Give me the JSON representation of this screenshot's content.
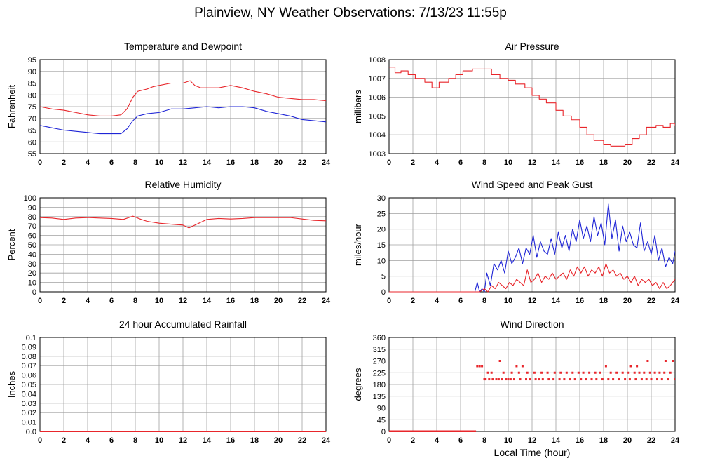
{
  "page_title": "Plainview, NY Weather Observations: 7/13/23 11:55p",
  "colors": {
    "red": "#e8262b",
    "blue": "#1f25d6",
    "grid": "#a0a0a0"
  },
  "chart_data": [
    {
      "id": "temp",
      "type": "line",
      "title": "Temperature and Dewpoint",
      "xlabel": "",
      "ylabel": "Fahrenheit",
      "xlim": [
        0,
        24
      ],
      "ylim": [
        55,
        95
      ],
      "xticks": [
        0,
        2,
        4,
        6,
        8,
        10,
        12,
        14,
        16,
        18,
        20,
        22,
        24
      ],
      "yticks": [
        55,
        60,
        65,
        70,
        75,
        80,
        85,
        90,
        95
      ],
      "grid": true,
      "legend": "none",
      "series": [
        {
          "color": "#e8262b",
          "x": [
            0,
            1,
            2,
            3,
            4,
            5,
            6,
            6.8,
            7.3,
            7.8,
            8.2,
            9,
            9.5,
            10,
            11,
            12,
            12.6,
            13,
            13.5,
            14,
            15,
            16,
            17,
            18,
            19,
            20,
            21,
            22,
            23,
            24
          ],
          "y": [
            75,
            74,
            73.5,
            72.5,
            71.5,
            71,
            71,
            71.5,
            74,
            79,
            81.5,
            82.5,
            83.5,
            84,
            85,
            85,
            86,
            84,
            83,
            83,
            83,
            84,
            83,
            81.5,
            80.5,
            79,
            78.5,
            78,
            78,
            77.5
          ]
        },
        {
          "color": "#1f25d6",
          "x": [
            0,
            1,
            2,
            3,
            4,
            5,
            6,
            6.8,
            7.3,
            7.8,
            8.2,
            9,
            10,
            11,
            12,
            13,
            14,
            15,
            16,
            17,
            18,
            19,
            20,
            21,
            22,
            23,
            24
          ],
          "y": [
            67,
            66,
            65,
            64.5,
            64,
            63.5,
            63.5,
            63.5,
            65.5,
            69,
            71,
            72,
            72.5,
            74,
            74,
            74.5,
            75,
            74.5,
            75,
            75,
            74.5,
            73,
            72,
            71,
            69.5,
            69,
            68.5
          ]
        }
      ]
    },
    {
      "id": "pressure",
      "type": "line",
      "title": "Air Pressure",
      "xlabel": "",
      "ylabel": "millibars",
      "xlim": [
        0,
        24
      ],
      "ylim": [
        1003,
        1008
      ],
      "xticks": [
        0,
        2,
        4,
        6,
        8,
        10,
        12,
        14,
        16,
        18,
        20,
        22,
        24
      ],
      "yticks": [
        1003,
        1004,
        1005,
        1006,
        1007,
        1008
      ],
      "grid": true,
      "legend": "none",
      "step": true,
      "series": [
        {
          "color": "#e8262b",
          "x": [
            0,
            0.5,
            1,
            1.6,
            2.2,
            3,
            3.6,
            4.2,
            5,
            5.6,
            6.2,
            7,
            8,
            8.6,
            9.3,
            10,
            10.6,
            11.4,
            12,
            12.6,
            13.2,
            14,
            14.6,
            15.3,
            16,
            16.6,
            17.2,
            18,
            18.6,
            19.2,
            19.8,
            20.4,
            21,
            21.6,
            22.4,
            23,
            23.6,
            24
          ],
          "y": [
            1007.6,
            1007.3,
            1007.4,
            1007.2,
            1007,
            1006.8,
            1006.5,
            1006.8,
            1007,
            1007.2,
            1007.4,
            1007.5,
            1007.5,
            1007.2,
            1007,
            1006.9,
            1006.7,
            1006.5,
            1006.1,
            1005.9,
            1005.7,
            1005.3,
            1005,
            1004.8,
            1004.4,
            1004,
            1003.7,
            1003.5,
            1003.4,
            1003.4,
            1003.5,
            1003.8,
            1004,
            1004.4,
            1004.5,
            1004.4,
            1004.6,
            1004.5
          ]
        }
      ]
    },
    {
      "id": "humidity",
      "type": "line",
      "title": "Relative Humidity",
      "xlabel": "",
      "ylabel": "Percent",
      "xlim": [
        0,
        24
      ],
      "ylim": [
        0,
        100
      ],
      "xticks": [
        0,
        2,
        4,
        6,
        8,
        10,
        12,
        14,
        16,
        18,
        20,
        22,
        24
      ],
      "yticks": [
        0,
        10,
        20,
        30,
        40,
        50,
        60,
        70,
        80,
        90,
        100
      ],
      "grid": true,
      "legend": "none",
      "series": [
        {
          "color": "#e8262b",
          "x": [
            0,
            1,
            2,
            3,
            4,
            5,
            6,
            7,
            7.8,
            8.5,
            9,
            10,
            11,
            12,
            12.5,
            13,
            14,
            15,
            16,
            17,
            18,
            19,
            20,
            21,
            22,
            23,
            24
          ],
          "y": [
            79,
            78.5,
            77,
            78.5,
            79,
            78.5,
            78,
            77,
            80.5,
            77,
            75,
            73,
            72,
            71,
            68,
            71,
            77,
            78,
            77.5,
            78,
            79,
            79,
            79,
            79,
            77.5,
            76,
            75.5
          ]
        }
      ]
    },
    {
      "id": "wind",
      "type": "line",
      "title": "Wind Speed and Peak Gust",
      "xlabel": "",
      "ylabel": "miles/hour",
      "xlim": [
        0,
        24
      ],
      "ylim": [
        0,
        30
      ],
      "xticks": [
        0,
        2,
        4,
        6,
        8,
        10,
        12,
        14,
        16,
        18,
        20,
        22,
        24
      ],
      "yticks": [
        0,
        5,
        10,
        15,
        20,
        25,
        30
      ],
      "grid": true,
      "legend": "none",
      "series": [
        {
          "color": "#1f25d6",
          "x": [
            0,
            7.2,
            7.4,
            7.6,
            7.8,
            8,
            8.2,
            8.5,
            8.8,
            9.1,
            9.4,
            9.7,
            10,
            10.3,
            10.6,
            10.9,
            11.2,
            11.5,
            11.8,
            12.1,
            12.4,
            12.7,
            13,
            13.3,
            13.6,
            13.9,
            14.2,
            14.5,
            14.8,
            15.1,
            15.4,
            15.7,
            16,
            16.3,
            16.6,
            16.9,
            17.2,
            17.5,
            17.8,
            18.1,
            18.4,
            18.7,
            19,
            19.3,
            19.6,
            19.9,
            20.2,
            20.5,
            20.8,
            21.1,
            21.4,
            21.7,
            22,
            22.3,
            22.6,
            22.9,
            23.2,
            23.5,
            23.8,
            24
          ],
          "y": [
            0,
            0,
            3,
            0,
            1,
            0,
            6,
            2,
            9,
            7,
            10,
            6,
            13,
            9,
            11,
            14,
            9,
            14,
            12,
            18,
            11,
            16,
            13,
            12,
            17,
            12,
            19,
            14,
            18,
            13,
            20,
            16,
            23,
            17,
            21,
            16,
            24,
            18,
            22,
            15,
            28,
            17,
            23,
            13,
            21,
            16,
            19,
            15,
            14,
            22,
            13,
            16,
            12,
            18,
            10,
            14,
            8,
            11,
            9,
            13
          ]
        },
        {
          "color": "#e8262b",
          "x": [
            0,
            7.6,
            8,
            8.3,
            8.6,
            8.9,
            9.2,
            9.5,
            9.8,
            10.1,
            10.4,
            10.7,
            11,
            11.3,
            11.6,
            11.9,
            12.2,
            12.5,
            12.8,
            13.1,
            13.4,
            13.7,
            14,
            14.3,
            14.6,
            14.9,
            15.2,
            15.5,
            15.8,
            16.1,
            16.4,
            16.7,
            17,
            17.3,
            17.6,
            17.9,
            18.2,
            18.5,
            18.8,
            19.1,
            19.4,
            19.7,
            20,
            20.3,
            20.6,
            20.9,
            21.2,
            21.5,
            21.8,
            22.1,
            22.4,
            22.7,
            23,
            23.3,
            23.6,
            24
          ],
          "y": [
            0,
            0,
            1,
            0,
            2,
            1,
            3,
            2,
            1,
            3,
            2,
            4,
            3,
            2,
            7,
            3,
            4,
            6,
            3,
            5,
            4,
            6,
            4,
            5,
            6,
            4,
            7,
            5,
            8,
            6,
            8,
            5,
            7,
            6,
            8,
            5,
            9,
            6,
            7,
            5,
            6,
            4,
            5,
            3,
            5,
            2,
            4,
            3,
            4,
            2,
            3,
            1,
            3,
            1,
            2,
            4
          ]
        }
      ]
    },
    {
      "id": "rain",
      "type": "line",
      "title": "24 hour Accumulated Rainfall",
      "xlabel": "",
      "ylabel": "Inches",
      "xlim": [
        0,
        24
      ],
      "ylim": [
        0,
        0.1
      ],
      "xticks": [
        0,
        2,
        4,
        6,
        8,
        10,
        12,
        14,
        16,
        18,
        20,
        22,
        24
      ],
      "yticks": [
        0.0,
        0.01,
        0.02,
        0.03,
        0.04,
        0.05,
        0.06,
        0.07,
        0.08,
        0.09,
        0.1
      ],
      "ytick_labels": [
        "0.0",
        "0.01",
        "0.02",
        "0.03",
        "0.04",
        "0.05",
        "0.06",
        "0.07",
        "0.08",
        "0.09",
        "0.1"
      ],
      "grid": true,
      "legend": "none",
      "series": [
        {
          "color": "#e8262b",
          "x": [
            0,
            24
          ],
          "y": [
            0,
            0
          ]
        }
      ]
    },
    {
      "id": "direction",
      "type": "scatter",
      "title": "Wind Direction",
      "xlabel": "Local Time (hour)",
      "ylabel": "degrees",
      "xlim": [
        0,
        24
      ],
      "ylim": [
        0,
        360
      ],
      "xticks": [
        0,
        2,
        4,
        6,
        8,
        10,
        12,
        14,
        16,
        18,
        20,
        22,
        24
      ],
      "yticks": [
        0,
        45,
        90,
        135,
        180,
        225,
        270,
        315,
        360
      ],
      "grid": true,
      "legend": "none",
      "series": [
        {
          "color": "#e8262b",
          "points": [
            [
              7.4,
              250
            ],
            [
              7.6,
              250
            ],
            [
              7.8,
              250
            ],
            [
              8.0,
              200
            ],
            [
              8.3,
              225
            ],
            [
              8.6,
              225
            ],
            [
              9.3,
              270
            ],
            [
              10.7,
              250
            ],
            [
              11.2,
              250
            ],
            [
              18.2,
              250
            ],
            [
              20.3,
              250
            ],
            [
              20.8,
              250
            ],
            [
              21.7,
              270
            ],
            [
              23.2,
              270
            ],
            [
              23.8,
              270
            ],
            [
              8.1,
              200
            ],
            [
              8.4,
              200
            ],
            [
              8.7,
              200
            ],
            [
              9.0,
              200
            ],
            [
              9.2,
              200
            ],
            [
              9.5,
              200
            ],
            [
              9.8,
              200
            ],
            [
              10.0,
              200
            ],
            [
              10.2,
              200
            ],
            [
              10.5,
              200
            ],
            [
              11.0,
              200
            ],
            [
              11.5,
              200
            ],
            [
              11.8,
              200
            ],
            [
              12.3,
              200
            ],
            [
              12.6,
              200
            ],
            [
              12.9,
              200
            ],
            [
              13.4,
              200
            ],
            [
              13.8,
              200
            ],
            [
              14.3,
              200
            ],
            [
              14.7,
              200
            ],
            [
              15.2,
              200
            ],
            [
              15.6,
              200
            ],
            [
              16.1,
              200
            ],
            [
              16.5,
              200
            ],
            [
              17.0,
              200
            ],
            [
              17.4,
              200
            ],
            [
              17.9,
              200
            ],
            [
              18.4,
              200
            ],
            [
              18.8,
              200
            ],
            [
              19.3,
              200
            ],
            [
              19.8,
              200
            ],
            [
              20.2,
              200
            ],
            [
              20.7,
              200
            ],
            [
              21.2,
              200
            ],
            [
              21.6,
              200
            ],
            [
              22.0,
              200
            ],
            [
              22.5,
              200
            ],
            [
              22.9,
              200
            ],
            [
              23.4,
              200
            ],
            [
              24.0,
              200
            ],
            [
              9.6,
              225
            ],
            [
              10.3,
              225
            ],
            [
              10.9,
              225
            ],
            [
              11.6,
              225
            ],
            [
              12.2,
              225
            ],
            [
              12.8,
              225
            ],
            [
              13.3,
              225
            ],
            [
              13.9,
              225
            ],
            [
              14.4,
              225
            ],
            [
              14.9,
              225
            ],
            [
              15.4,
              225
            ],
            [
              15.9,
              225
            ],
            [
              16.3,
              225
            ],
            [
              16.8,
              225
            ],
            [
              17.3,
              225
            ],
            [
              17.7,
              225
            ],
            [
              18.6,
              225
            ],
            [
              19.1,
              225
            ],
            [
              19.6,
              225
            ],
            [
              20.1,
              225
            ],
            [
              20.6,
              225
            ],
            [
              21.0,
              225
            ],
            [
              21.4,
              225
            ],
            [
              21.9,
              225
            ],
            [
              22.3,
              225
            ],
            [
              22.7,
              225
            ],
            [
              23.1,
              225
            ],
            [
              23.6,
              225
            ]
          ],
          "calm_x_range": [
            0,
            7.3
          ],
          "calm_value": 0
        }
      ]
    }
  ]
}
